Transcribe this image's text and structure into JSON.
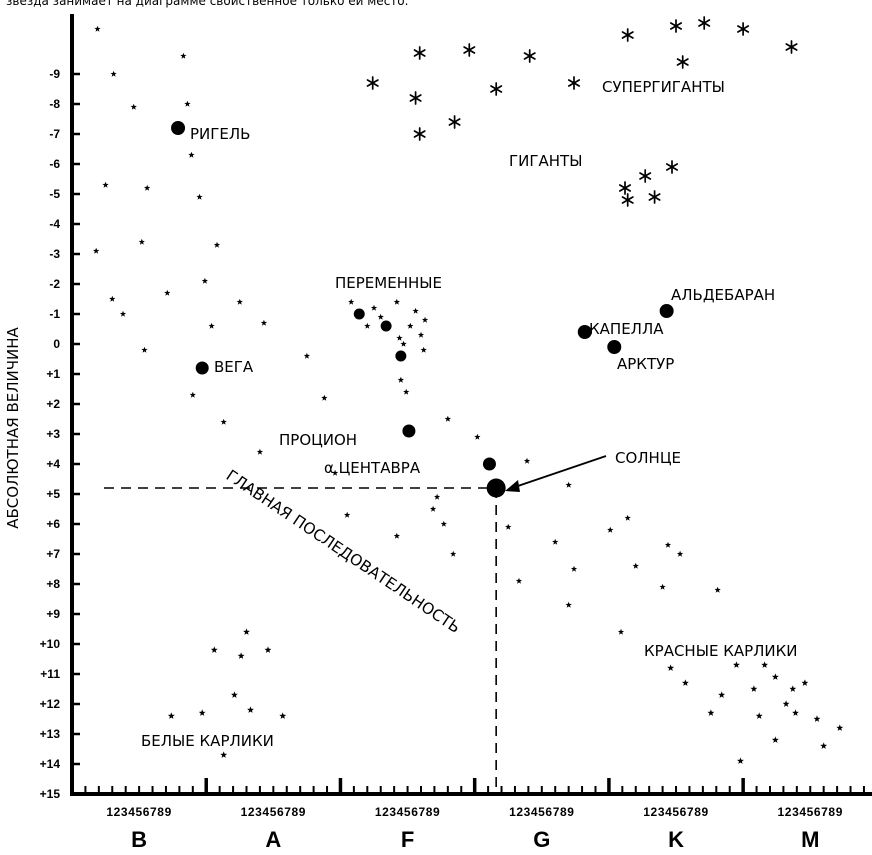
{
  "caption": "звезда занимает на диаграмме свойственное только ей место.",
  "chart_data": {
    "type": "scatter",
    "ylabel": "АБСОЛЮТНАЯ ВЕЛИЧИНА",
    "ylim": [
      -10.8,
      15
    ],
    "y_ticks": [
      "-9",
      "-8",
      "-7",
      "-6",
      "-5",
      "-4",
      "-3",
      "-2",
      "-1",
      "0",
      "+1",
      "+2",
      "+3",
      "+4",
      "+5",
      "+6",
      "+7",
      "+8",
      "+9",
      "+10",
      "+11",
      "+12",
      "+13",
      "+14",
      "+15"
    ],
    "x_classes": [
      "B",
      "A",
      "F",
      "G",
      "K",
      "M"
    ],
    "x_subdivisions": "123456789",
    "xlim": [
      0,
      59.6
    ],
    "regions": {
      "supergiants": "СУПЕРГИГАНТЫ",
      "giants": "ГИГАНТЫ",
      "variables": "ПЕРЕМЕННЫЕ",
      "main_sequence": "ГЛАВНАЯ ПОСЛЕДОВАТЕЛЬНОСТЬ",
      "red_dwarfs": "КРАСНЫЕ КАРЛИКИ",
      "white_dwarfs": "БЕЛЫЕ КАРЛИКИ"
    },
    "named_stars": [
      {
        "name": "РИГЕЛЬ",
        "x": 7.9,
        "y": -7.2
      },
      {
        "name": "ВЕГА",
        "x": 9.7,
        "y": 0.8
      },
      {
        "name": "ПРОЦИОН",
        "x": 25.1,
        "y": 2.9
      },
      {
        "name": "α ЦЕНТАВРА",
        "x": 31.1,
        "y": 4.0
      },
      {
        "name": "СОЛНЦЕ",
        "x": 31.6,
        "y": 4.8
      },
      {
        "name": "КАПЕЛЛА",
        "x": 38.2,
        "y": -0.4
      },
      {
        "name": "АРКТУР",
        "x": 40.4,
        "y": 0.1
      },
      {
        "name": "АЛЬДЕБАРАН",
        "x": 44.3,
        "y": -1.1
      }
    ],
    "sun_reference": {
      "spectral_x": 31.6,
      "magnitude": 4.8
    },
    "variable_stars_large": [
      {
        "x": 21.4,
        "y": -1.0
      },
      {
        "x": 23.4,
        "y": -0.6
      },
      {
        "x": 24.5,
        "y": 0.4
      }
    ],
    "stars": [
      {
        "x": 1.9,
        "y": -10.5
      },
      {
        "x": 3.1,
        "y": -9.0
      },
      {
        "x": 4.6,
        "y": -7.9
      },
      {
        "x": 5.6,
        "y": -5.2
      },
      {
        "x": 5.2,
        "y": -3.4
      },
      {
        "x": 7.1,
        "y": -1.7
      },
      {
        "x": 3.0,
        "y": -1.5
      },
      {
        "x": 3.8,
        "y": -1.0
      },
      {
        "x": 5.4,
        "y": 0.2
      },
      {
        "x": 2.5,
        "y": -5.3
      },
      {
        "x": 1.8,
        "y": -3.1
      },
      {
        "x": 8.3,
        "y": -9.6
      },
      {
        "x": 8.6,
        "y": -8.0
      },
      {
        "x": 8.9,
        "y": -6.3
      },
      {
        "x": 9.5,
        "y": -4.9
      },
      {
        "x": 10.8,
        "y": -3.3
      },
      {
        "x": 9.9,
        "y": -2.1
      },
      {
        "x": 10.4,
        "y": -0.6
      },
      {
        "x": 9.0,
        "y": 1.7
      },
      {
        "x": 12.5,
        "y": -1.4
      },
      {
        "x": 14.3,
        "y": -0.7
      },
      {
        "x": 11.3,
        "y": 2.6
      },
      {
        "x": 14.0,
        "y": 3.6
      },
      {
        "x": 18.8,
        "y": 1.8
      },
      {
        "x": 17.5,
        "y": 0.4
      },
      {
        "x": 19.6,
        "y": 4.3
      },
      {
        "x": 20.5,
        "y": 5.7
      },
      {
        "x": 24.2,
        "y": 6.4
      },
      {
        "x": 26.9,
        "y": 5.5
      },
      {
        "x": 27.7,
        "y": 6.0
      },
      {
        "x": 28.4,
        "y": 7.0
      },
      {
        "x": 28.0,
        "y": 2.5
      },
      {
        "x": 30.2,
        "y": 3.1
      },
      {
        "x": 32.5,
        "y": 6.1
      },
      {
        "x": 33.3,
        "y": 7.9
      },
      {
        "x": 27.2,
        "y": 5.1
      },
      {
        "x": 33.9,
        "y": 3.9
      },
      {
        "x": 37.0,
        "y": 4.7
      },
      {
        "x": 36.0,
        "y": 6.6
      },
      {
        "x": 37.4,
        "y": 7.5
      },
      {
        "x": 37.0,
        "y": 8.7
      },
      {
        "x": 40.1,
        "y": 6.2
      },
      {
        "x": 41.4,
        "y": 5.8
      },
      {
        "x": 42.0,
        "y": 7.4
      },
      {
        "x": 44.4,
        "y": 6.7
      },
      {
        "x": 45.3,
        "y": 7.0
      },
      {
        "x": 44.0,
        "y": 8.1
      },
      {
        "x": 48.1,
        "y": 8.2
      },
      {
        "x": 40.9,
        "y": 9.6
      },
      {
        "x": 20.8,
        "y": -1.4
      },
      {
        "x": 22.5,
        "y": -1.2
      },
      {
        "x": 24.2,
        "y": -1.4
      },
      {
        "x": 25.6,
        "y": -1.1
      },
      {
        "x": 23.0,
        "y": -0.9
      },
      {
        "x": 25.2,
        "y": -0.6
      },
      {
        "x": 26.3,
        "y": -0.8
      },
      {
        "x": 24.4,
        "y": -0.2
      },
      {
        "x": 26.0,
        "y": -0.3
      },
      {
        "x": 24.7,
        "y": 0.0
      },
      {
        "x": 26.2,
        "y": 0.2
      },
      {
        "x": 22.0,
        "y": -0.6
      },
      {
        "x": 24.5,
        "y": 1.2
      },
      {
        "x": 24.9,
        "y": 1.6
      }
    ],
    "giant_stars": [
      {
        "x": 42.7,
        "y": -5.6
      },
      {
        "x": 41.2,
        "y": -5.2
      },
      {
        "x": 44.7,
        "y": -5.9
      },
      {
        "x": 41.4,
        "y": -4.8
      },
      {
        "x": 43.4,
        "y": -4.9
      }
    ],
    "supergiant_stars": [
      {
        "x": 25.9,
        "y": -9.7
      },
      {
        "x": 29.6,
        "y": -9.8
      },
      {
        "x": 34.1,
        "y": -9.6
      },
      {
        "x": 41.4,
        "y": -10.3
      },
      {
        "x": 45.0,
        "y": -10.6
      },
      {
        "x": 47.1,
        "y": -10.7
      },
      {
        "x": 50.0,
        "y": -10.5
      },
      {
        "x": 53.6,
        "y": -9.9
      },
      {
        "x": 45.5,
        "y": -9.4
      },
      {
        "x": 22.4,
        "y": -8.7
      },
      {
        "x": 25.6,
        "y": -8.2
      },
      {
        "x": 31.6,
        "y": -8.5
      },
      {
        "x": 37.4,
        "y": -8.7
      },
      {
        "x": 28.5,
        "y": -7.4
      },
      {
        "x": 25.9,
        "y": -7.0
      }
    ],
    "red_dwarf_stars": [
      {
        "x": 44.6,
        "y": 10.8
      },
      {
        "x": 45.7,
        "y": 11.3
      },
      {
        "x": 47.6,
        "y": 12.3
      },
      {
        "x": 48.4,
        "y": 11.7
      },
      {
        "x": 49.5,
        "y": 10.7
      },
      {
        "x": 50.8,
        "y": 11.5
      },
      {
        "x": 51.2,
        "y": 12.4
      },
      {
        "x": 51.6,
        "y": 10.7
      },
      {
        "x": 52.4,
        "y": 11.1
      },
      {
        "x": 53.2,
        "y": 12.0
      },
      {
        "x": 53.7,
        "y": 11.5
      },
      {
        "x": 52.4,
        "y": 13.2
      },
      {
        "x": 54.6,
        "y": 11.3
      },
      {
        "x": 55.5,
        "y": 12.5
      },
      {
        "x": 56.0,
        "y": 13.4
      },
      {
        "x": 57.2,
        "y": 12.8
      },
      {
        "x": 49.8,
        "y": 13.9
      },
      {
        "x": 53.9,
        "y": 12.3
      }
    ],
    "white_dwarf_stars": [
      {
        "x": 7.4,
        "y": 12.4
      },
      {
        "x": 9.7,
        "y": 12.3
      },
      {
        "x": 12.1,
        "y": 11.7
      },
      {
        "x": 12.6,
        "y": 10.4
      },
      {
        "x": 10.6,
        "y": 10.2
      },
      {
        "x": 13.0,
        "y": 9.6
      },
      {
        "x": 14.6,
        "y": 10.2
      },
      {
        "x": 13.3,
        "y": 12.2
      },
      {
        "x": 15.7,
        "y": 12.4
      },
      {
        "x": 11.3,
        "y": 13.7
      }
    ]
  }
}
